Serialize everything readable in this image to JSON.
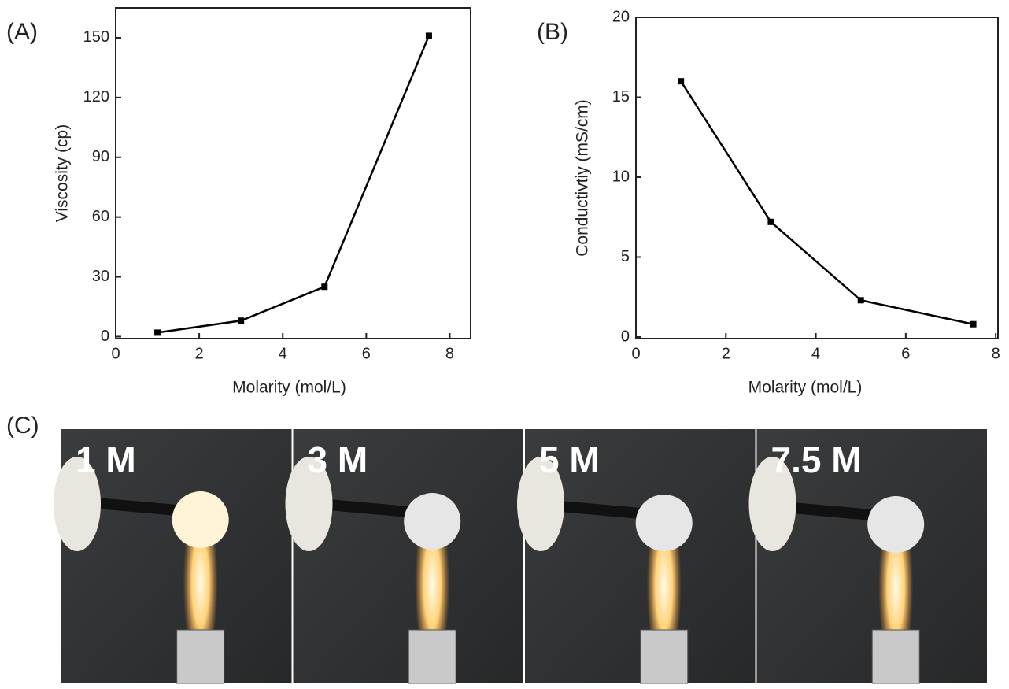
{
  "chart_data": [
    {
      "type": "line",
      "panel": "(A)",
      "x_label": "Molarity (mol/L)",
      "y_label": "Viscosity (cp)",
      "x": [
        1,
        3,
        5,
        7.5
      ],
      "values": [
        2,
        8,
        25,
        151
      ],
      "color": "#000000",
      "xlim": [
        0,
        8.5
      ],
      "xticks": [
        0,
        2,
        4,
        6,
        8
      ],
      "ylim": [
        -1,
        165
      ],
      "yticks": [
        0,
        30,
        60,
        90,
        120,
        150
      ]
    },
    {
      "type": "line",
      "panel": "(B)",
      "x_label": "Molarity (mol/L)",
      "y_label": "Conductivtiy (mS/cm)",
      "x": [
        1,
        3,
        5,
        7.5
      ],
      "values": [
        16,
        7.2,
        2.3,
        0.8
      ],
      "color": "#000000",
      "xlim": [
        0,
        8.05
      ],
      "xticks": [
        0,
        2,
        4,
        6,
        8
      ],
      "ylim": [
        -0.1,
        20
      ],
      "yticks": [
        0,
        5,
        10,
        15,
        20
      ]
    }
  ],
  "photos": {
    "panel": "(C)",
    "labels": [
      "1 M",
      "3 M",
      "5 M",
      "7.5 M"
    ]
  }
}
